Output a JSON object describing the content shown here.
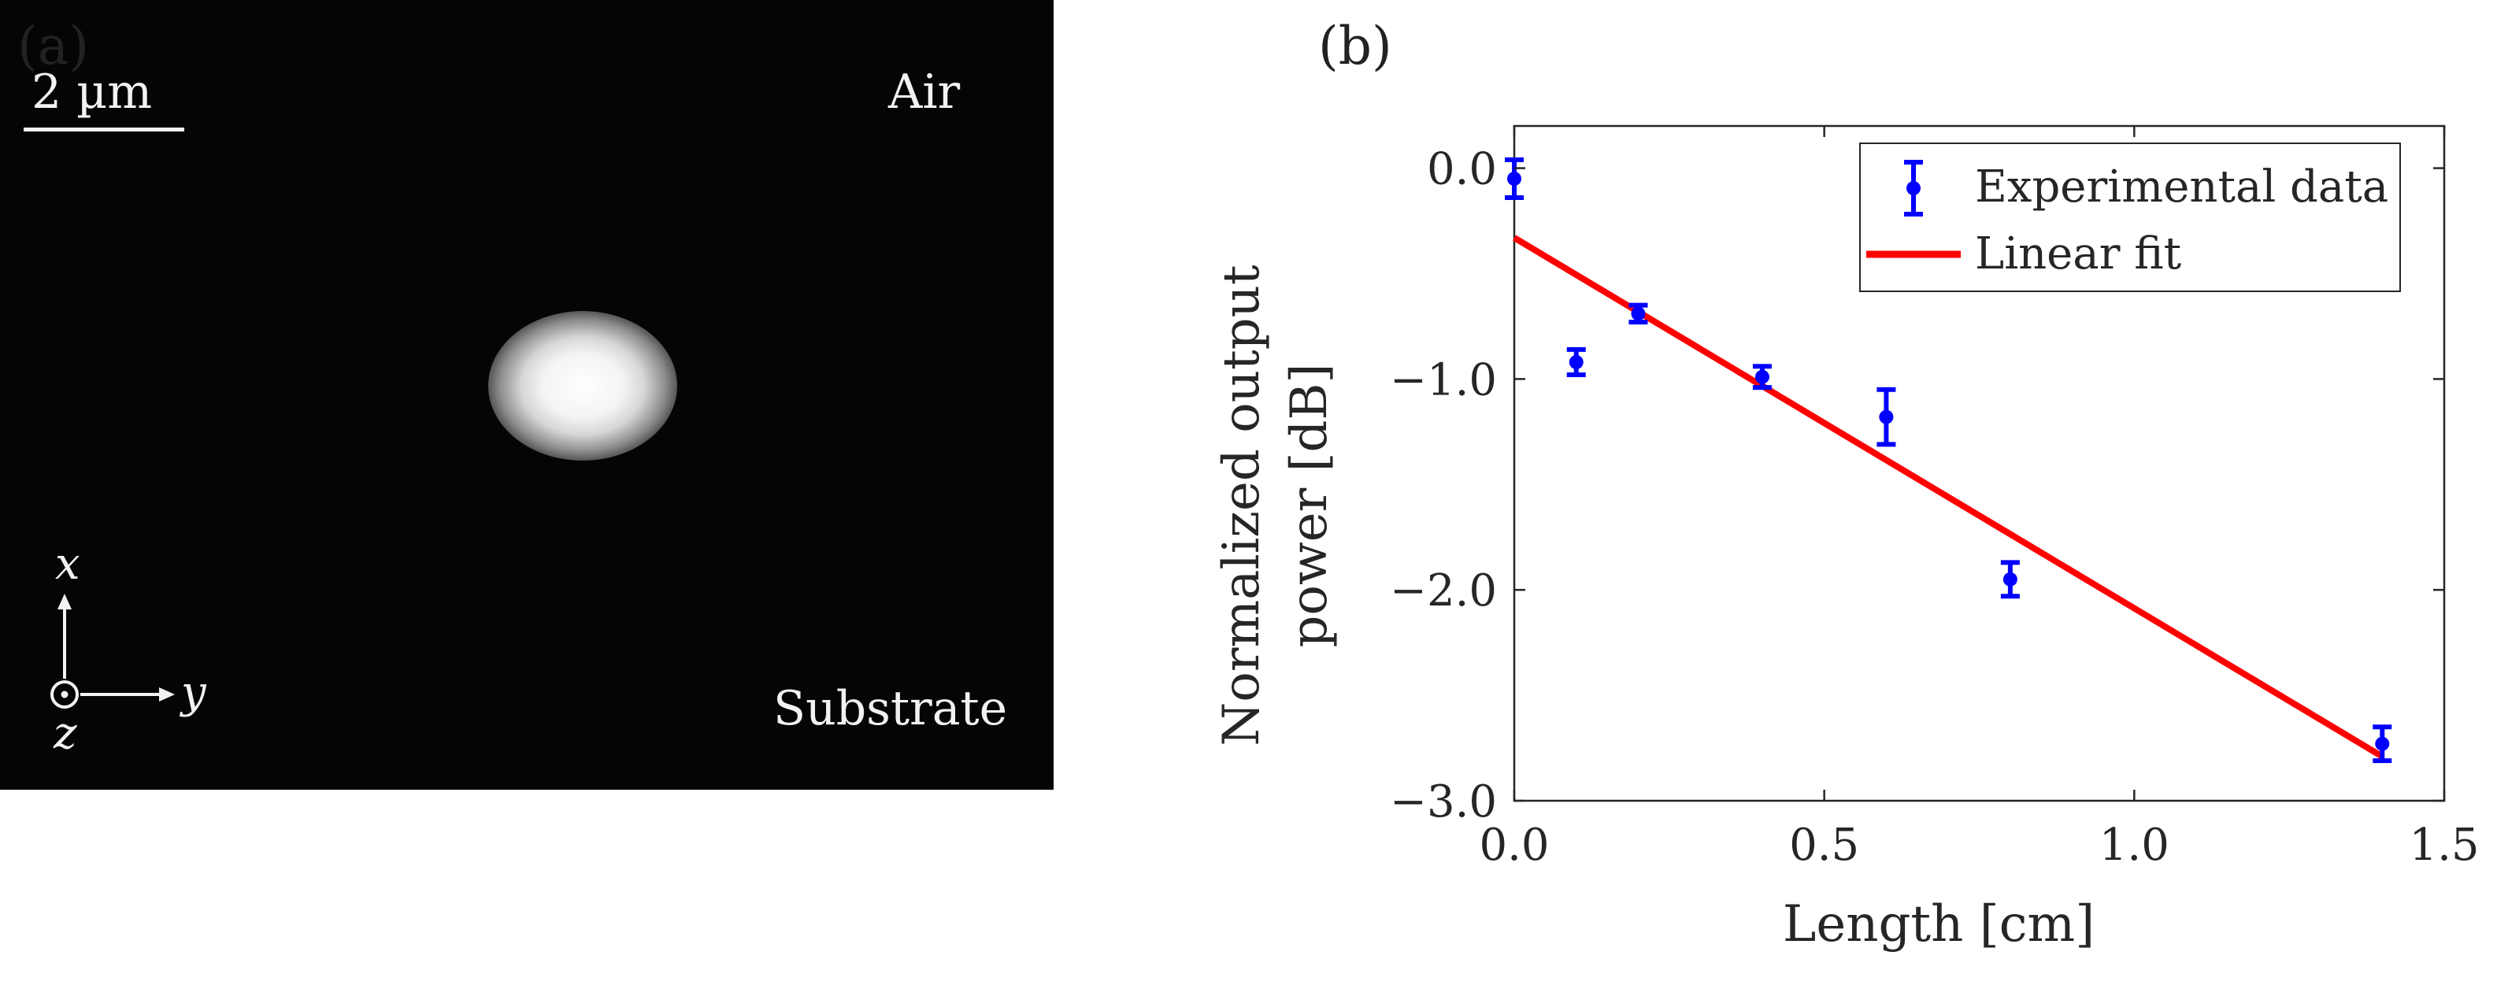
{
  "panels": {
    "a": {
      "label": "(a)",
      "scale_bar": "2 µm",
      "region_top": "Air",
      "region_bottom": "Substrate",
      "axes": {
        "x": "x",
        "y": "y",
        "z": "z"
      }
    },
    "b": {
      "label": "(b)"
    }
  },
  "chart_data": {
    "type": "scatter",
    "xlabel": "Length [cm]",
    "ylabel": [
      "Normalized output",
      "power [dB]"
    ],
    "xlim": [
      0.0,
      1.5
    ],
    "ylim": [
      -3.0,
      0.2
    ],
    "xticks": [
      0.0,
      0.5,
      1.0,
      1.5
    ],
    "xtick_labels": [
      "0.0",
      "0.5",
      "1.0",
      "1.5"
    ],
    "yticks": [
      0.0,
      -1.0,
      -2.0,
      -3.0
    ],
    "ytick_labels": [
      "0.0",
      "−1.0",
      "−2.0",
      "−3.0"
    ],
    "grid": false,
    "legend": "top-right",
    "series": [
      {
        "name": "Experimental data",
        "kind": "errorbar",
        "color": "#0000ff",
        "x": [
          0.0,
          0.1,
          0.2,
          0.4,
          0.6,
          0.8,
          1.4
        ],
        "y": [
          -0.05,
          -0.92,
          -0.69,
          -0.99,
          -1.18,
          -1.95,
          -2.73
        ],
        "err": [
          0.09,
          0.06,
          0.04,
          0.05,
          0.13,
          0.08,
          0.08
        ]
      },
      {
        "name": "Linear fit",
        "kind": "line",
        "color": "#ff0000",
        "x": [
          0.0,
          1.4
        ],
        "y": [
          -0.33,
          -2.79
        ]
      }
    ]
  }
}
